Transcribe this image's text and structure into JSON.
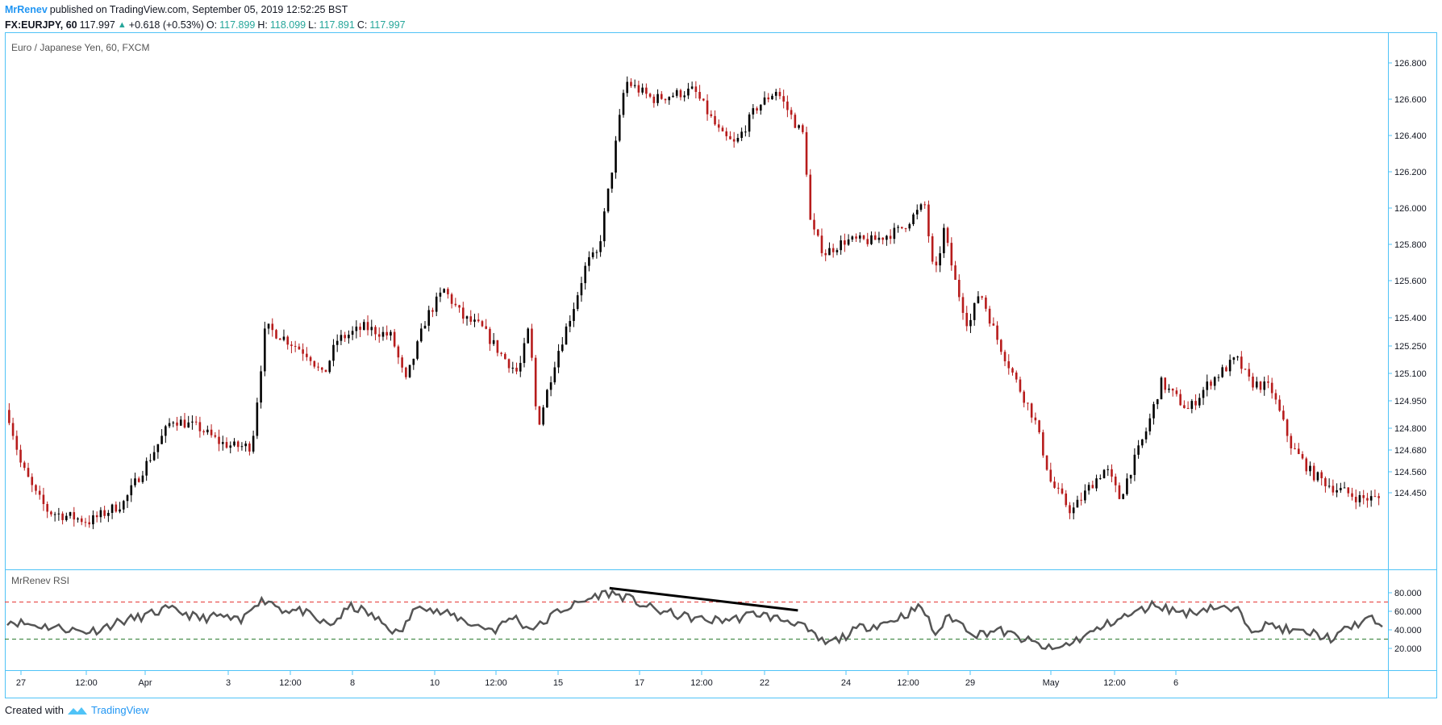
{
  "header": {
    "author": "MrRenev",
    "published": "published on TradingView.com, September 05, 2019 12:52:25 BST",
    "symbol": "FX:EURJPY, 60",
    "last": "117.997",
    "change": "+0.618 (+0.53%)",
    "o_label": "O:",
    "o_value": "117.899",
    "h_label": "H:",
    "h_value": "118.099",
    "l_label": "L:",
    "l_value": "117.891",
    "c_label": "C:",
    "c_value": "117.997"
  },
  "main_pane": {
    "title": "Euro / Japanese Yen, 60, FXCM"
  },
  "rsi_pane": {
    "title": "MrRenev RSI"
  },
  "footer": {
    "created_with": "Created with",
    "brand": "TradingView"
  },
  "colors": {
    "up": "#000000",
    "down": "#b71c1c",
    "rsi_line": "#555555",
    "overbought": "#e53935",
    "oversold": "#2e7d32",
    "frame": "#4fc3f7"
  },
  "chart_data": [
    {
      "type": "candlestick",
      "title": "Euro / Japanese Yen, 60, FXCM",
      "y_ticks": [
        "126.800",
        "126.600",
        "126.400",
        "126.200",
        "126.000",
        "125.800",
        "125.600",
        "125.400",
        "125.250",
        "125.100",
        "124.950",
        "124.800",
        "124.680",
        "124.560",
        "124.450"
      ],
      "x_ticks": [
        "27",
        "12:00",
        "Apr",
        "3",
        "12:00",
        "8",
        "10",
        "12:00",
        "15",
        "17",
        "12:00",
        "22",
        "24",
        "12:00",
        "29",
        "May",
        "12:00",
        "6"
      ],
      "price_path": [
        [
          0,
          124.9
        ],
        [
          0.01,
          124.6
        ],
        [
          0.02,
          124.45
        ],
        [
          0.03,
          124.35
        ],
        [
          0.06,
          124.3
        ],
        [
          0.085,
          124.4
        ],
        [
          0.105,
          124.65
        ],
        [
          0.12,
          124.85
        ],
        [
          0.14,
          124.8
        ],
        [
          0.155,
          124.72
        ],
        [
          0.165,
          124.7
        ],
        [
          0.178,
          124.7
        ],
        [
          0.188,
          125.35
        ],
        [
          0.2,
          125.3
        ],
        [
          0.22,
          125.2
        ],
        [
          0.23,
          125.08
        ],
        [
          0.24,
          125.28
        ],
        [
          0.26,
          125.35
        ],
        [
          0.28,
          125.3
        ],
        [
          0.29,
          125.05
        ],
        [
          0.305,
          125.4
        ],
        [
          0.318,
          125.55
        ],
        [
          0.332,
          125.4
        ],
        [
          0.345,
          125.35
        ],
        [
          0.36,
          125.2
        ],
        [
          0.372,
          125.1
        ],
        [
          0.38,
          125.35
        ],
        [
          0.386,
          124.8
        ],
        [
          0.4,
          125.2
        ],
        [
          0.412,
          125.45
        ],
        [
          0.422,
          125.7
        ],
        [
          0.43,
          125.75
        ],
        [
          0.44,
          126.2
        ],
        [
          0.45,
          126.7
        ],
        [
          0.47,
          126.6
        ],
        [
          0.5,
          126.65
        ],
        [
          0.52,
          126.4
        ],
        [
          0.53,
          126.35
        ],
        [
          0.545,
          126.55
        ],
        [
          0.56,
          126.65
        ],
        [
          0.575,
          126.45
        ],
        [
          0.58,
          126.4
        ],
        [
          0.585,
          125.9
        ],
        [
          0.595,
          125.75
        ],
        [
          0.61,
          125.82
        ],
        [
          0.63,
          125.82
        ],
        [
          0.65,
          125.88
        ],
        [
          0.668,
          126.02
        ],
        [
          0.675,
          125.6
        ],
        [
          0.682,
          125.88
        ],
        [
          0.69,
          125.6
        ],
        [
          0.7,
          125.35
        ],
        [
          0.708,
          125.55
        ],
        [
          0.72,
          125.3
        ],
        [
          0.735,
          125.05
        ],
        [
          0.748,
          124.85
        ],
        [
          0.76,
          124.5
        ],
        [
          0.775,
          124.35
        ],
        [
          0.79,
          124.5
        ],
        [
          0.8,
          124.58
        ],
        [
          0.81,
          124.42
        ],
        [
          0.83,
          124.8
        ],
        [
          0.84,
          125.05
        ],
        [
          0.86,
          124.9
        ],
        [
          0.875,
          125.05
        ],
        [
          0.895,
          125.18
        ],
        [
          0.905,
          125.05
        ],
        [
          0.92,
          125.02
        ],
        [
          0.935,
          124.7
        ],
        [
          0.95,
          124.55
        ],
        [
          0.965,
          124.48
        ],
        [
          0.985,
          124.42
        ]
      ]
    },
    {
      "type": "line",
      "title": "MrRenev RSI",
      "y_ticks": [
        "80.000",
        "60.000",
        "40.000",
        "20.000"
      ],
      "overbought": 70,
      "oversold": 30,
      "rsi_path": [
        [
          0,
          50
        ],
        [
          0.02,
          45
        ],
        [
          0.04,
          42
        ],
        [
          0.055,
          38
        ],
        [
          0.065,
          40
        ],
        [
          0.08,
          48
        ],
        [
          0.1,
          55
        ],
        [
          0.115,
          62
        ],
        [
          0.125,
          60
        ],
        [
          0.14,
          52
        ],
        [
          0.155,
          55
        ],
        [
          0.17,
          48
        ],
        [
          0.18,
          70
        ],
        [
          0.19,
          72
        ],
        [
          0.2,
          62
        ],
        [
          0.215,
          60
        ],
        [
          0.225,
          50
        ],
        [
          0.235,
          45
        ],
        [
          0.25,
          65
        ],
        [
          0.26,
          60
        ],
        [
          0.275,
          45
        ],
        [
          0.285,
          35
        ],
        [
          0.3,
          70
        ],
        [
          0.31,
          60
        ],
        [
          0.325,
          55
        ],
        [
          0.34,
          45
        ],
        [
          0.355,
          40
        ],
        [
          0.368,
          55
        ],
        [
          0.378,
          42
        ],
        [
          0.388,
          45
        ],
        [
          0.4,
          60
        ],
        [
          0.415,
          68
        ],
        [
          0.43,
          78
        ],
        [
          0.438,
          80
        ],
        [
          0.45,
          75
        ],
        [
          0.47,
          62
        ],
        [
          0.49,
          55
        ],
        [
          0.51,
          50
        ],
        [
          0.53,
          52
        ],
        [
          0.545,
          58
        ],
        [
          0.56,
          52
        ],
        [
          0.575,
          48
        ],
        [
          0.585,
          35
        ],
        [
          0.595,
          25
        ],
        [
          0.605,
          30
        ],
        [
          0.62,
          42
        ],
        [
          0.64,
          48
        ],
        [
          0.655,
          58
        ],
        [
          0.665,
          65
        ],
        [
          0.675,
          35
        ],
        [
          0.685,
          55
        ],
        [
          0.695,
          45
        ],
        [
          0.705,
          35
        ],
        [
          0.72,
          40
        ],
        [
          0.735,
          32
        ],
        [
          0.748,
          25
        ],
        [
          0.76,
          18
        ],
        [
          0.772,
          25
        ],
        [
          0.79,
          38
        ],
        [
          0.805,
          50
        ],
        [
          0.82,
          58
        ],
        [
          0.835,
          68
        ],
        [
          0.845,
          62
        ],
        [
          0.86,
          58
        ],
        [
          0.875,
          65
        ],
        [
          0.895,
          60
        ],
        [
          0.905,
          42
        ],
        [
          0.92,
          45
        ],
        [
          0.935,
          38
        ],
        [
          0.95,
          36
        ],
        [
          0.965,
          30
        ],
        [
          0.975,
          42
        ],
        [
          0.99,
          52
        ],
        [
          1.0,
          46
        ]
      ],
      "trendline": {
        "from": [
          0.438,
          85
        ],
        "to": [
          0.575,
          61
        ]
      }
    }
  ]
}
